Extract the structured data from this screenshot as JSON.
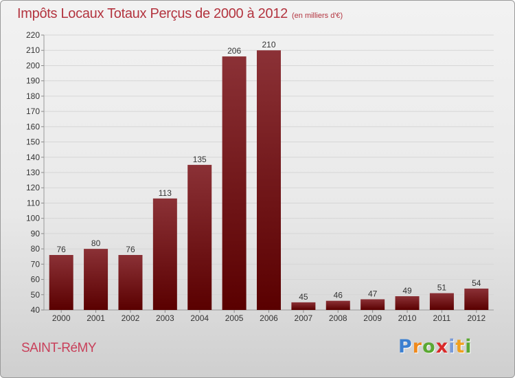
{
  "chart_data": {
    "type": "bar",
    "title": "Impôts Locaux Totaux Perçus de 2000 à 2012",
    "subtitle": "(en milliers d'€)",
    "categories": [
      "2000",
      "2001",
      "2002",
      "2003",
      "2004",
      "2005",
      "2006",
      "2007",
      "2008",
      "2009",
      "2010",
      "2011",
      "2012"
    ],
    "values": [
      76,
      80,
      76,
      113,
      135,
      206,
      210,
      45,
      46,
      47,
      49,
      51,
      54
    ],
    "ylim": [
      40,
      220
    ],
    "yticks": [
      40,
      50,
      60,
      70,
      80,
      90,
      100,
      110,
      120,
      130,
      140,
      150,
      160,
      170,
      180,
      190,
      200,
      210,
      220
    ],
    "grid": true,
    "xlabel": "",
    "ylabel": ""
  },
  "footer": {
    "commune": "SAINT-RéMY",
    "logo_letters": [
      "P",
      "r",
      "o",
      "x",
      "i",
      "t",
      "i"
    ],
    "logo_colors": [
      "#3b7fd0",
      "#f08a1c",
      "#5aa832",
      "#d92a2a",
      "#7a9bd8",
      "#f0a020",
      "#5aa832"
    ]
  },
  "colors": {
    "bar_top": "#8b3136",
    "bar_bottom": "#5a0000",
    "title": "#b3343f",
    "text": "#333333",
    "grid": "#d6d6d6"
  }
}
